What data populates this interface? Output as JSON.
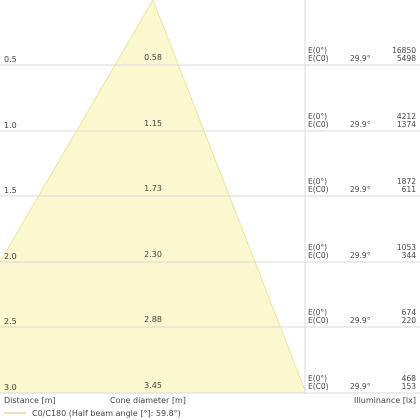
{
  "chart_data": {
    "type": "area",
    "xlabel": "Cone diameter [m]",
    "ylabel": "Distance [m]",
    "zlabel": "Illuminance [lx]",
    "legend": "C0/C180 (Half beam angle [°]: 59.8°)",
    "half_beam_angle": "29.9°",
    "center_label": "E(0°)",
    "c0_label": "E(C0)",
    "colors": {
      "cone_fill": "#fbf7cf",
      "cone_edge": "#ece3a3",
      "grid": "#dadada",
      "legend_line": "#e8c98a",
      "text": "#444444"
    },
    "rows": [
      {
        "distance": "0.5",
        "diameter": "0.58",
        "e_center": "16850",
        "e_c0": "5498"
      },
      {
        "distance": "1.0",
        "diameter": "1.15",
        "e_center": "4212",
        "e_c0": "1374"
      },
      {
        "distance": "1.5",
        "diameter": "1.73",
        "e_center": "1872",
        "e_c0": "611"
      },
      {
        "distance": "2.0",
        "diameter": "2.30",
        "e_center": "1053",
        "e_c0": "344"
      },
      {
        "distance": "2.5",
        "diameter": "2.88",
        "e_center": "674",
        "e_c0": "220"
      },
      {
        "distance": "3.0",
        "diameter": "3.45",
        "e_center": "468",
        "e_c0": "153"
      }
    ]
  }
}
